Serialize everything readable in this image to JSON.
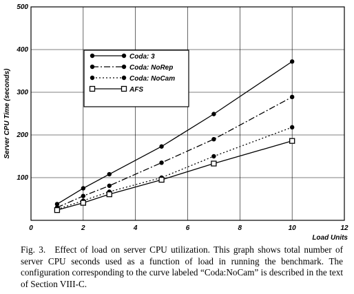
{
  "chart_data": {
    "type": "line",
    "title": "",
    "xlabel": "Load Units",
    "ylabel": "Server CPU Time (seconds)",
    "xlim": [
      0,
      12
    ],
    "ylim": [
      0,
      500
    ],
    "xticks": [
      0,
      2,
      4,
      6,
      8,
      10,
      12
    ],
    "yticks": [
      100,
      200,
      300,
      400,
      500
    ],
    "grid": true,
    "legend_position": "upper-left-center",
    "series": [
      {
        "name": "Coda: 3",
        "style": "solid",
        "marker": "dot",
        "x": [
          1,
          2,
          3,
          5,
          7,
          10
        ],
        "y": [
          38,
          75,
          108,
          173,
          249,
          372
        ]
      },
      {
        "name": "Coda: NoRep",
        "style": "dashdot",
        "marker": "dot",
        "x": [
          1,
          2,
          3,
          5,
          7,
          10
        ],
        "y": [
          30,
          57,
          81,
          135,
          190,
          289
        ]
      },
      {
        "name": "Coda: NoCam",
        "style": "dotted",
        "marker": "dot",
        "x": [
          1,
          2,
          3,
          5,
          7,
          10
        ],
        "y": [
          26,
          46,
          67,
          100,
          150,
          218
        ]
      },
      {
        "name": "AFS",
        "style": "solid",
        "marker": "square",
        "x": [
          1,
          2,
          3,
          5,
          7,
          10
        ],
        "y": [
          24,
          41,
          61,
          95,
          133,
          186
        ]
      }
    ]
  },
  "caption": "Fig. 3. Effect of load on server CPU utilization. This graph shows total number of server CPU seconds used as a function of load in running the benchmark. The configuration corresponding to the curve labeled “Coda:NoCam” is described in the text of Section VIII-C."
}
